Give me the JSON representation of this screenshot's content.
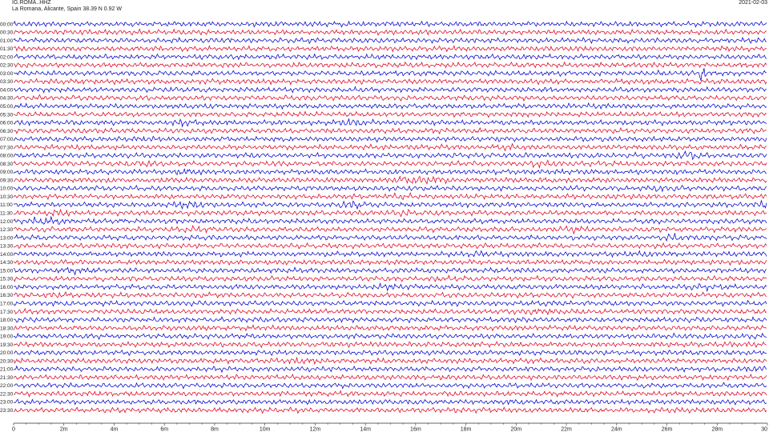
{
  "header": {
    "station": "IG.ROMA..HHZ",
    "location": "La Romana, Alicante, Spain  38.39 N 0.92 W",
    "date": "2021-02-03"
  },
  "chart_data": {
    "type": "line",
    "title": "IG.ROMA..HHZ",
    "subtitle": "La Romana, Alicante, Spain  38.39 N 0.92 W",
    "xlabel": "",
    "ylabel": "",
    "xlim": [
      0,
      30
    ],
    "x_ticks": [
      {
        "value": 0,
        "label": "0"
      },
      {
        "value": 2,
        "label": "2m"
      },
      {
        "value": 4,
        "label": "4m"
      },
      {
        "value": 6,
        "label": "6m"
      },
      {
        "value": 8,
        "label": "8m"
      },
      {
        "value": 10,
        "label": "10m"
      },
      {
        "value": 12,
        "label": "12m"
      },
      {
        "value": 14,
        "label": "14m"
      },
      {
        "value": 16,
        "label": "16m"
      },
      {
        "value": 18,
        "label": "18m"
      },
      {
        "value": 20,
        "label": "20m"
      },
      {
        "value": 22,
        "label": "22m"
      },
      {
        "value": 24,
        "label": "24m"
      },
      {
        "value": 26,
        "label": "26m"
      },
      {
        "value": 28,
        "label": "28m"
      },
      {
        "value": 30,
        "label": "30"
      }
    ],
    "row_labels": [
      "00:00",
      "00:30",
      "01:00",
      "01:30",
      "02:00",
      "02:30",
      "03:00",
      "03:30",
      "04:00",
      "04:30",
      "05:00",
      "05:30",
      "06:00",
      "06:30",
      "07:00",
      "07:30",
      "08:00",
      "08:30",
      "09:00",
      "09:30",
      "10:00",
      "10:30",
      "11:00",
      "11:30",
      "12:00",
      "12:30",
      "13:00",
      "13:30",
      "14:00",
      "14:30",
      "15:00",
      "15:30",
      "16:00",
      "16:30",
      "17:00",
      "17:30",
      "18:00",
      "18:30",
      "19:00",
      "19:30",
      "20:00",
      "20:30",
      "21:00",
      "21:30",
      "22:00",
      "22:30",
      "23:00",
      "23:30"
    ],
    "colors": [
      "#0000cc",
      "#dd0022"
    ],
    "grid": false,
    "legend": "none",
    "events": [
      {
        "row": "03:00",
        "minute": 27.4,
        "amp": 6.0,
        "dur": 0.08
      },
      {
        "row": "06:00",
        "minute": 6.8,
        "amp": 1.6,
        "dur": 0.5
      },
      {
        "row": "06:00",
        "minute": 13.5,
        "amp": 1.8,
        "dur": 0.6
      },
      {
        "row": "07:30",
        "minute": 19.6,
        "amp": 1.3,
        "dur": 0.6
      },
      {
        "row": "08:00",
        "minute": 26.9,
        "amp": 1.8,
        "dur": 0.5
      },
      {
        "row": "08:30",
        "minute": 5.3,
        "amp": 1.7,
        "dur": 0.5
      },
      {
        "row": "08:30",
        "minute": 21.0,
        "amp": 1.6,
        "dur": 0.7
      },
      {
        "row": "09:00",
        "minute": 7.0,
        "amp": 1.5,
        "dur": 0.5
      },
      {
        "row": "09:30",
        "minute": 16.2,
        "amp": 2.0,
        "dur": 0.9
      },
      {
        "row": "10:00",
        "minute": 25.8,
        "amp": 1.6,
        "dur": 0.5
      },
      {
        "row": "10:30",
        "minute": 15.4,
        "amp": 1.5,
        "dur": 0.5
      },
      {
        "row": "11:00",
        "minute": 6.9,
        "amp": 1.7,
        "dur": 0.6
      },
      {
        "row": "11:00",
        "minute": 13.4,
        "amp": 1.9,
        "dur": 0.6
      },
      {
        "row": "11:00",
        "minute": 29.9,
        "amp": 1.7,
        "dur": 0.4
      },
      {
        "row": "11:30",
        "minute": 1.8,
        "amp": 1.6,
        "dur": 0.5
      },
      {
        "row": "11:30",
        "minute": 15.6,
        "amp": 1.5,
        "dur": 0.5
      },
      {
        "row": "12:00",
        "minute": 1.2,
        "amp": 2.0,
        "dur": 0.6
      },
      {
        "row": "12:30",
        "minute": 7.3,
        "amp": 1.5,
        "dur": 0.5
      },
      {
        "row": "12:30",
        "minute": 22.3,
        "amp": 1.5,
        "dur": 0.5
      },
      {
        "row": "13:00",
        "minute": 26.2,
        "amp": 1.5,
        "dur": 0.4
      },
      {
        "row": "14:00",
        "minute": 18.4,
        "amp": 1.4,
        "dur": 0.5
      },
      {
        "row": "14:00",
        "minute": 25.0,
        "amp": 1.3,
        "dur": 0.5
      },
      {
        "row": "15:00",
        "minute": 2.4,
        "amp": 1.4,
        "dur": 0.5
      },
      {
        "row": "15:30",
        "minute": 17.4,
        "amp": 1.4,
        "dur": 0.5
      },
      {
        "row": "16:00",
        "minute": 14.9,
        "amp": 1.6,
        "dur": 0.5
      },
      {
        "row": "16:00",
        "minute": 27.4,
        "amp": 1.5,
        "dur": 0.6
      },
      {
        "row": "16:30",
        "minute": 1.8,
        "amp": 1.4,
        "dur": 0.4
      },
      {
        "row": "17:30",
        "minute": 21.0,
        "amp": 1.6,
        "dur": 0.9
      },
      {
        "row": "20:30",
        "minute": 11.4,
        "amp": 1.5,
        "dur": 0.6
      },
      {
        "row": "21:00",
        "minute": 29.6,
        "amp": 1.6,
        "dur": 0.6
      }
    ]
  }
}
